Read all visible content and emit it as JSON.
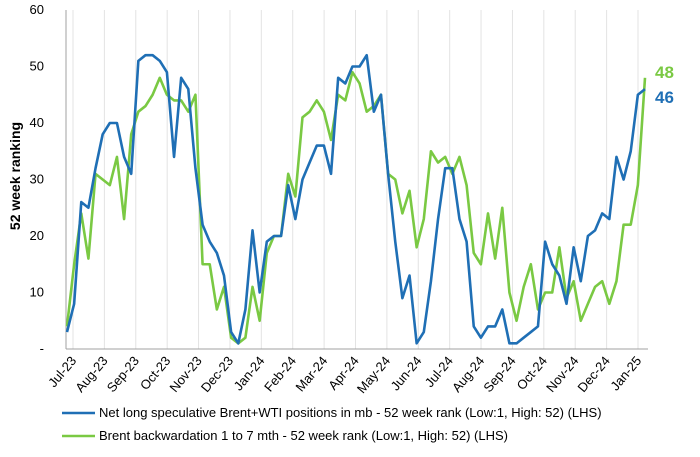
{
  "chart_data": {
    "type": "line",
    "title": "",
    "ylabel": "52 week ranking",
    "xlabel": "",
    "ylim": [
      0,
      60
    ],
    "y_ticks": [
      "-",
      "10",
      "20",
      "30",
      "40",
      "50",
      "60"
    ],
    "x_ticks": [
      "Jul-23",
      "Aug-23",
      "Sep-23",
      "Oct-23",
      "Nov-23",
      "Dec-23",
      "Jan-24",
      "Feb-24",
      "Mar-24",
      "Apr-24",
      "May-24",
      "Jun-24",
      "Jul-24",
      "Aug-24",
      "Sep-24",
      "Oct-24",
      "Nov-24",
      "Dec-24",
      "Jan-25"
    ],
    "grid": "vertical",
    "legend_position": "bottom",
    "series": [
      {
        "name": "Net long speculative Brent+WTI positions in mb - 52 week rank (Low:1, High: 52) (LHS)",
        "color": "#1f6fb5",
        "end_label": "46",
        "values": [
          3,
          8,
          26,
          25,
          32,
          38,
          40,
          40,
          34,
          31,
          51,
          52,
          52,
          51,
          49,
          34,
          48,
          46,
          32,
          22,
          19,
          17,
          13,
          3,
          1,
          7,
          21,
          10,
          19,
          20,
          20,
          29,
          23,
          30,
          33,
          36,
          36,
          31,
          48,
          47,
          50,
          50,
          52,
          42,
          45,
          31,
          19,
          9,
          13,
          1,
          3,
          12,
          23,
          32,
          32,
          23,
          19,
          4,
          2,
          4,
          4,
          7,
          1,
          1,
          2,
          3,
          4,
          19,
          15,
          13,
          8,
          18,
          12,
          20,
          21,
          24,
          23,
          34,
          30,
          35,
          45,
          46
        ]
      },
      {
        "name": "Brent backwardation 1 to 7 mth - 52 week rank (Low:1, High: 52) (LHS)",
        "color": "#7ac943",
        "end_label": "48",
        "values": [
          4,
          15,
          24,
          16,
          31,
          30,
          29,
          34,
          23,
          38,
          42,
          43,
          45,
          48,
          45,
          44,
          44,
          42,
          45,
          15,
          15,
          7,
          11,
          2,
          1,
          2,
          11,
          5,
          17,
          20,
          20,
          31,
          27,
          41,
          42,
          44,
          42,
          37,
          45,
          44,
          49,
          47,
          42,
          43,
          45,
          31,
          30,
          24,
          28,
          18,
          23,
          35,
          33,
          34,
          31,
          34,
          29,
          17,
          15,
          24,
          16,
          25,
          10,
          5,
          11,
          15,
          7,
          10,
          10,
          18,
          9,
          12,
          5,
          8,
          11,
          12,
          8,
          12,
          22,
          22,
          29,
          48
        ]
      }
    ]
  }
}
